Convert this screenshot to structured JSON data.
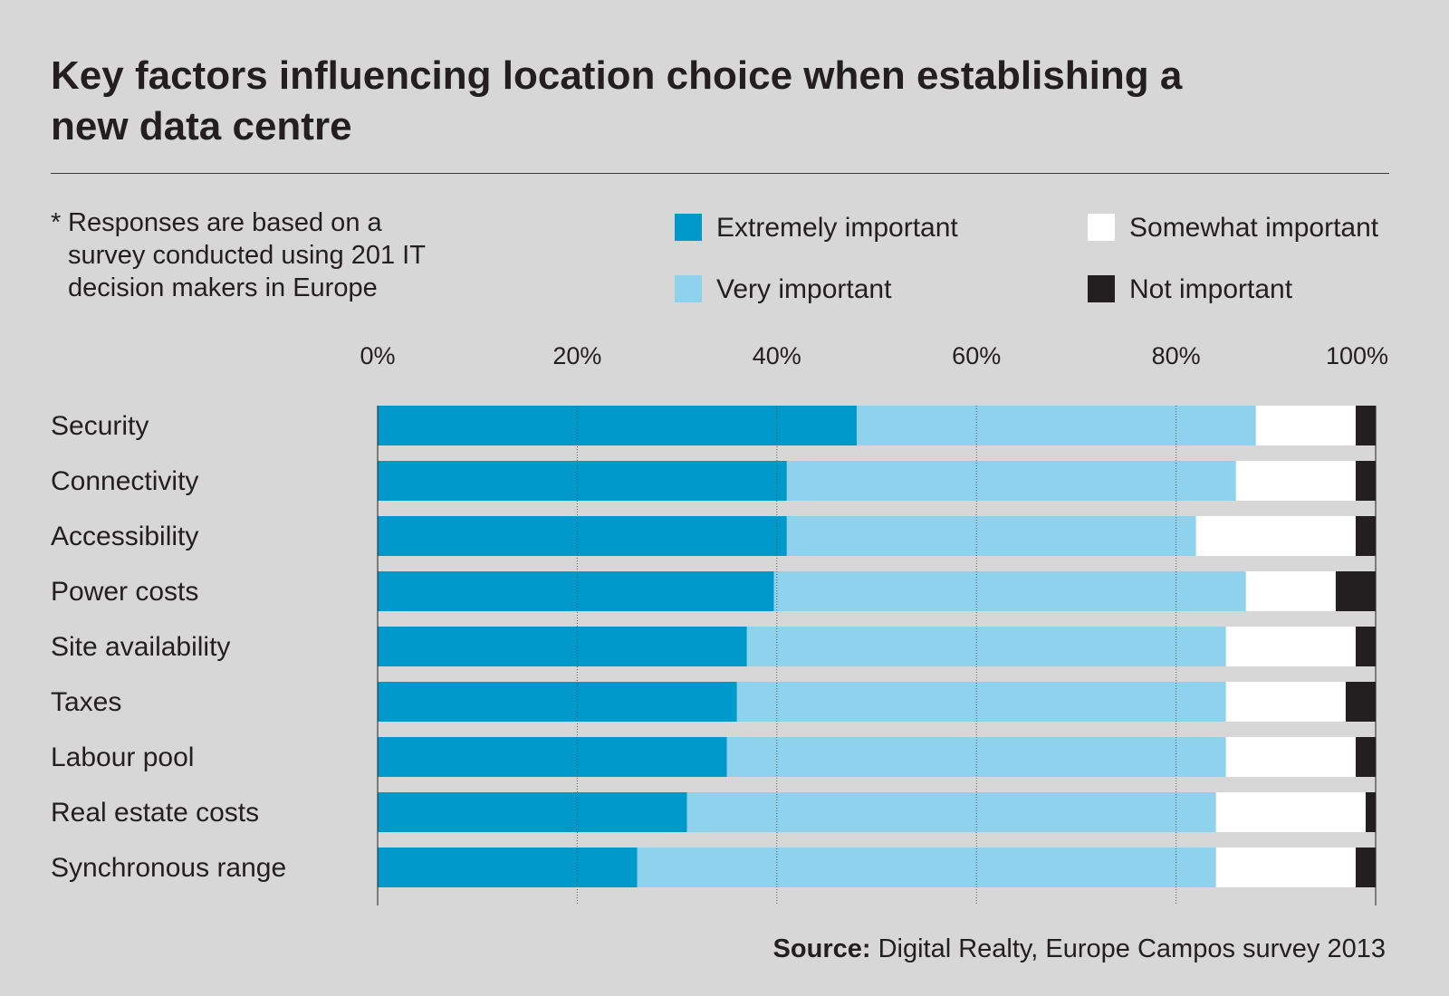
{
  "title": "Key factors influencing location choice when establishing a new data centre",
  "note": {
    "asterisk": "*",
    "text": "Responses are based on a survey conducted using 201 IT decision makers in Europe"
  },
  "source": {
    "label": "Source:",
    "text": "Digital Realty, Europe Campos survey 2013"
  },
  "colors": {
    "background": "#d7d7d7",
    "extremely": "#0099cc",
    "very": "#8fd2ee",
    "somewhat": "#ffffff",
    "not": "#231f20",
    "text": "#231f20"
  },
  "chart_data": {
    "type": "bar",
    "orientation": "horizontal",
    "stacked": true,
    "title": "Key factors influencing location choice when establishing a new data centre",
    "xlim": [
      0,
      100
    ],
    "xticks": [
      "0%",
      "20%",
      "40%",
      "60%",
      "80%",
      "100%"
    ],
    "grid": true,
    "legend_position": "top",
    "categories": [
      "Security",
      "Connectivity",
      "Accessibility",
      "Power costs",
      "Site availability",
      "Taxes",
      "Labour pool",
      "Real estate costs",
      "Synchronous range"
    ],
    "series": [
      {
        "name": "Extremely important",
        "color": "#0099cc",
        "values": [
          48,
          41,
          41,
          39.7,
          37,
          36,
          35,
          31,
          26
        ]
      },
      {
        "name": "Somewhat important",
        "color": "#ffffff",
        "values": [
          10,
          12,
          16,
          9,
          13,
          12,
          13,
          15,
          14
        ]
      },
      {
        "name": "Very important",
        "color": "#8fd2ee",
        "values": [
          40,
          45,
          41,
          47.3,
          48,
          49,
          50,
          53,
          58
        ]
      },
      {
        "name": "Not important",
        "color": "#231f20",
        "values": [
          2,
          2,
          2,
          4,
          2,
          3,
          2,
          1,
          2
        ]
      }
    ],
    "stack_order": [
      0,
      2,
      1,
      3
    ]
  }
}
